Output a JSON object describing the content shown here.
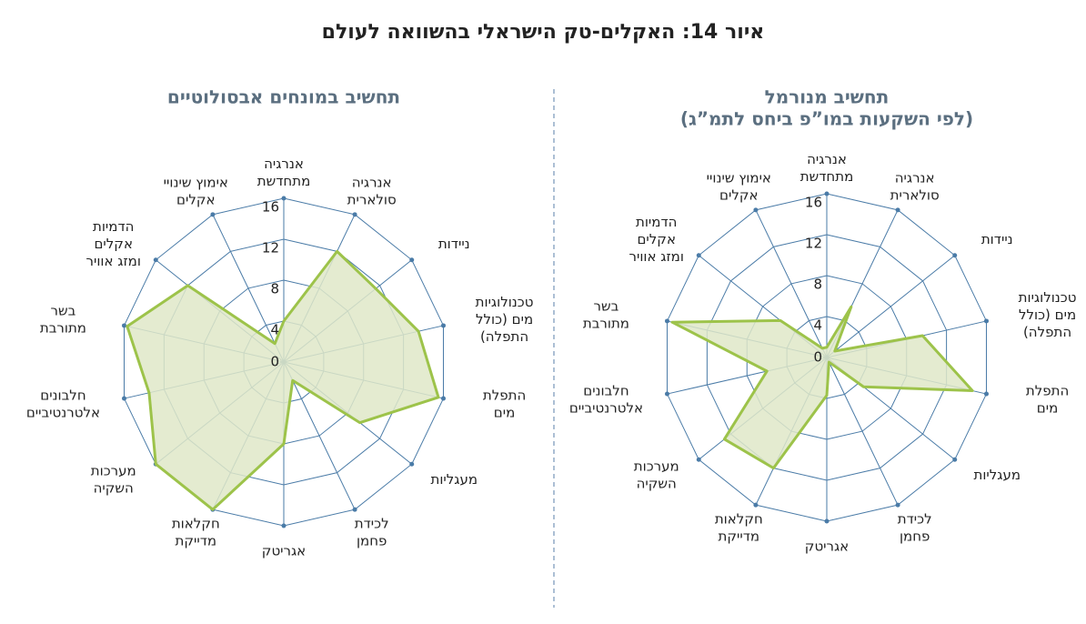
{
  "title": "איור 14: האקלים-טק הישראלי בהשוואה לעולם",
  "chart_data": [
    {
      "type": "radar",
      "title": "תחשיב במונחים אבסולוטיים",
      "categories": [
        [
          "אנרגיה",
          "מתחדשת"
        ],
        [
          "אנרגיה",
          "סולארית"
        ],
        [
          "ניידות"
        ],
        [
          "טכנולוגיות",
          "מים (כולל",
          "התפלה)"
        ],
        [
          "התפלת",
          "מים"
        ],
        [
          "מעגליות"
        ],
        [
          "לכידת",
          "פחמן"
        ],
        [
          "אגריטק"
        ],
        [
          "חקלאות",
          "מדייקת"
        ],
        [
          "מערכות",
          "השקיה"
        ],
        [
          "חלבונים",
          "אלטרנטיביים"
        ],
        [
          "בשר",
          "מתורבת"
        ],
        [
          "הדמיות",
          "אקלים",
          "ומזג אוויר"
        ],
        [
          "אימוץ שינויי",
          "אקלים"
        ]
      ],
      "values": [
        4,
        12,
        11.5,
        13.5,
        15.5,
        9.5,
        2,
        8,
        16,
        16,
        13.5,
        15.7,
        12,
        2
      ],
      "color": "#9dc34a",
      "fill": "#dfe8c8",
      "grid_color": "#4a7ba7",
      "ylim": [
        0,
        16
      ],
      "yticks": [
        0,
        4,
        8,
        12,
        16
      ]
    },
    {
      "type": "radar",
      "title": "תחשיב מנורמל",
      "subtitle": "(לפי השקעות במו”פ ביחס לתמ”ג)",
      "categories": [
        [
          "אנרגיה",
          "מתחדשת"
        ],
        [
          "אנרגיה",
          "סולארית"
        ],
        [
          "ניידות"
        ],
        [
          "טכנולוגיות",
          "מים (כולל",
          "התפלה)"
        ],
        [
          "התפלת",
          "מים"
        ],
        [
          "מעגליות"
        ],
        [
          "לכידת",
          "פחמן"
        ],
        [
          "אגריטק"
        ],
        [
          "חקלאות",
          "מדייקת"
        ],
        [
          "מערכות",
          "השקיה"
        ],
        [
          "חלבונים",
          "אלטרנטיביים"
        ],
        [
          "בשר",
          "מתורבת"
        ],
        [
          "הדמיות",
          "אקלים",
          "ומזג אוויר"
        ],
        [
          "אימוץ שינויי",
          "אקלים"
        ]
      ],
      "values": [
        1,
        5.5,
        1,
        9.6,
        14.6,
        4.6,
        0.5,
        3.7,
        12,
        12.8,
        6,
        15.5,
        5.8,
        1
      ],
      "color": "#9dc34a",
      "fill": "#dfe8c8",
      "grid_color": "#4a7ba7",
      "ylim": [
        0,
        16
      ],
      "yticks": [
        0,
        4,
        8,
        12,
        16
      ]
    }
  ]
}
